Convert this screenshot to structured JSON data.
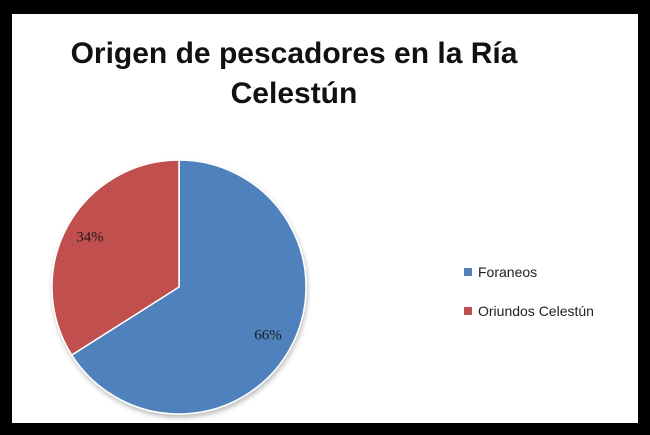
{
  "chart_data": {
    "type": "pie",
    "title": "Origen de pescadores en la Ría Celestún",
    "categories": [
      "Foraneos",
      "Oriundos Celestún"
    ],
    "values": [
      66,
      34
    ],
    "labels": [
      "66%",
      "34%"
    ],
    "colors": [
      "#4f81bd",
      "#c0504d"
    ],
    "legend_position": "right"
  }
}
